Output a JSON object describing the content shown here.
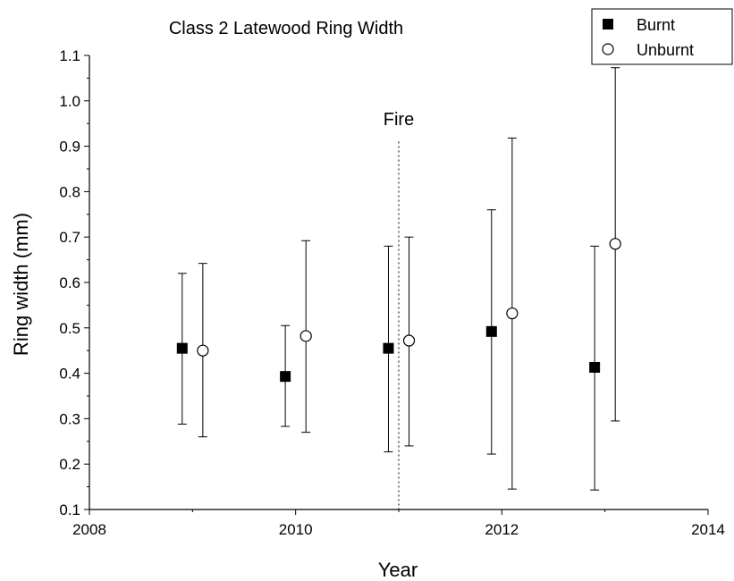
{
  "chart_data": {
    "type": "scatter",
    "title": "Class 2 Latewood Ring Width",
    "xlabel": "Year",
    "ylabel": "Ring width (mm)",
    "xlim": [
      2008,
      2014
    ],
    "ylim": [
      0.1,
      1.1
    ],
    "xticks": [
      2008,
      2010,
      2012,
      2014
    ],
    "yticks": [
      0.1,
      0.2,
      0.3,
      0.4,
      0.5,
      0.6,
      0.7,
      0.8,
      0.9,
      1.0,
      1.1
    ],
    "xtick_labels": [
      "2008",
      "2010",
      "2012",
      "2014"
    ],
    "ytick_labels": [
      "0.1",
      "0.2",
      "0.3",
      "0.4",
      "0.5",
      "0.6",
      "0.7",
      "0.8",
      "0.9",
      "1.0",
      "1.1"
    ],
    "legend_position": "top-right",
    "grid": false,
    "series": [
      {
        "name": "Burnt",
        "marker": "filled-square",
        "color": "#000000",
        "points": [
          {
            "x": 2008.9,
            "y": 0.455,
            "low": 0.288,
            "high": 0.62
          },
          {
            "x": 2009.9,
            "y": 0.393,
            "low": 0.283,
            "high": 0.505
          },
          {
            "x": 2010.9,
            "y": 0.455,
            "low": 0.227,
            "high": 0.68
          },
          {
            "x": 2011.9,
            "y": 0.492,
            "low": 0.222,
            "high": 0.76
          },
          {
            "x": 2012.9,
            "y": 0.413,
            "low": 0.143,
            "high": 0.68
          }
        ]
      },
      {
        "name": "Unburnt",
        "marker": "open-circle",
        "color": "#000000",
        "points": [
          {
            "x": 2009.1,
            "y": 0.45,
            "low": 0.26,
            "high": 0.642
          },
          {
            "x": 2010.1,
            "y": 0.482,
            "low": 0.27,
            "high": 0.692
          },
          {
            "x": 2011.1,
            "y": 0.472,
            "low": 0.24,
            "high": 0.7
          },
          {
            "x": 2012.1,
            "y": 0.532,
            "low": 0.145,
            "high": 0.918
          },
          {
            "x": 2013.1,
            "y": 0.685,
            "low": 0.295,
            "high": 1.073
          }
        ]
      }
    ],
    "annotations": [
      {
        "type": "vline",
        "x": 2011,
        "style": "dotted",
        "label": "Fire"
      }
    ]
  }
}
